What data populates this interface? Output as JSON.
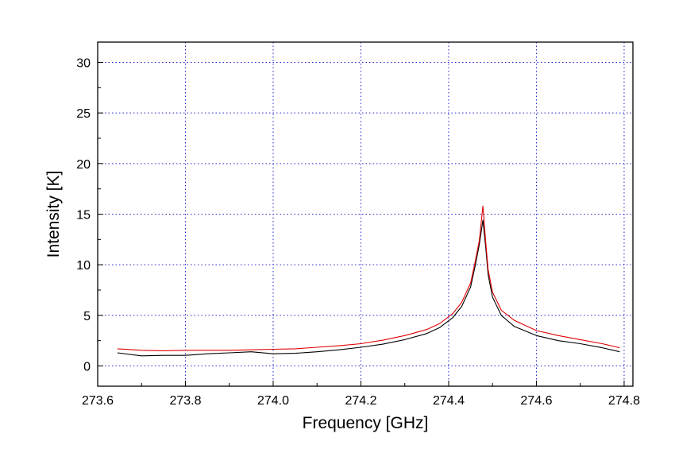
{
  "chart_data": {
    "type": "line",
    "xlabel": "Frequency [GHz]",
    "ylabel": "Intensity [K]",
    "xlim": [
      273.6,
      274.82
    ],
    "ylim": [
      -2,
      32
    ],
    "xticks": [
      273.6,
      273.8,
      274.0,
      274.2,
      274.4,
      274.6,
      274.8
    ],
    "xtick_labels": [
      "273.6",
      "273.8",
      "274.0",
      "274.2",
      "274.4",
      "274.6",
      "274.8"
    ],
    "yticks": [
      0,
      5,
      10,
      15,
      20,
      25,
      30
    ],
    "ytick_labels": [
      "0",
      "5",
      "10",
      "15",
      "20",
      "25",
      "30"
    ],
    "grid": true,
    "legend": "none",
    "series": [
      {
        "color": "#000000",
        "x": [
          273.645,
          273.7,
          273.75,
          273.8,
          273.85,
          273.9,
          273.95,
          274.0,
          274.05,
          274.1,
          274.15,
          274.2,
          274.25,
          274.3,
          274.35,
          274.38,
          274.41,
          274.43,
          274.45,
          274.46,
          274.47,
          274.478,
          274.485,
          274.49,
          274.5,
          274.52,
          274.55,
          274.6,
          274.65,
          274.7,
          274.75,
          274.79
        ],
        "y": [
          1.3,
          1.0,
          1.05,
          1.05,
          1.2,
          1.3,
          1.4,
          1.2,
          1.25,
          1.4,
          1.6,
          1.85,
          2.15,
          2.6,
          3.2,
          3.8,
          4.8,
          5.9,
          7.8,
          9.8,
          12.0,
          14.4,
          11.5,
          9.0,
          6.8,
          5.0,
          3.9,
          3.0,
          2.5,
          2.2,
          1.8,
          1.4
        ]
      },
      {
        "color": "#e00000",
        "x": [
          273.645,
          273.7,
          273.75,
          273.8,
          273.85,
          273.9,
          273.95,
          274.0,
          274.05,
          274.1,
          274.15,
          274.2,
          274.25,
          274.3,
          274.35,
          274.38,
          274.41,
          274.43,
          274.45,
          274.46,
          274.47,
          274.478,
          274.485,
          274.49,
          274.5,
          274.52,
          274.55,
          274.6,
          274.65,
          274.7,
          274.75,
          274.79
        ],
        "y": [
          1.7,
          1.55,
          1.5,
          1.55,
          1.55,
          1.55,
          1.6,
          1.65,
          1.7,
          1.85,
          2.0,
          2.2,
          2.55,
          3.0,
          3.6,
          4.2,
          5.2,
          6.3,
          8.2,
          10.2,
          12.4,
          15.8,
          12.0,
          9.5,
          7.3,
          5.5,
          4.5,
          3.5,
          3.0,
          2.6,
          2.2,
          1.8
        ]
      }
    ]
  }
}
